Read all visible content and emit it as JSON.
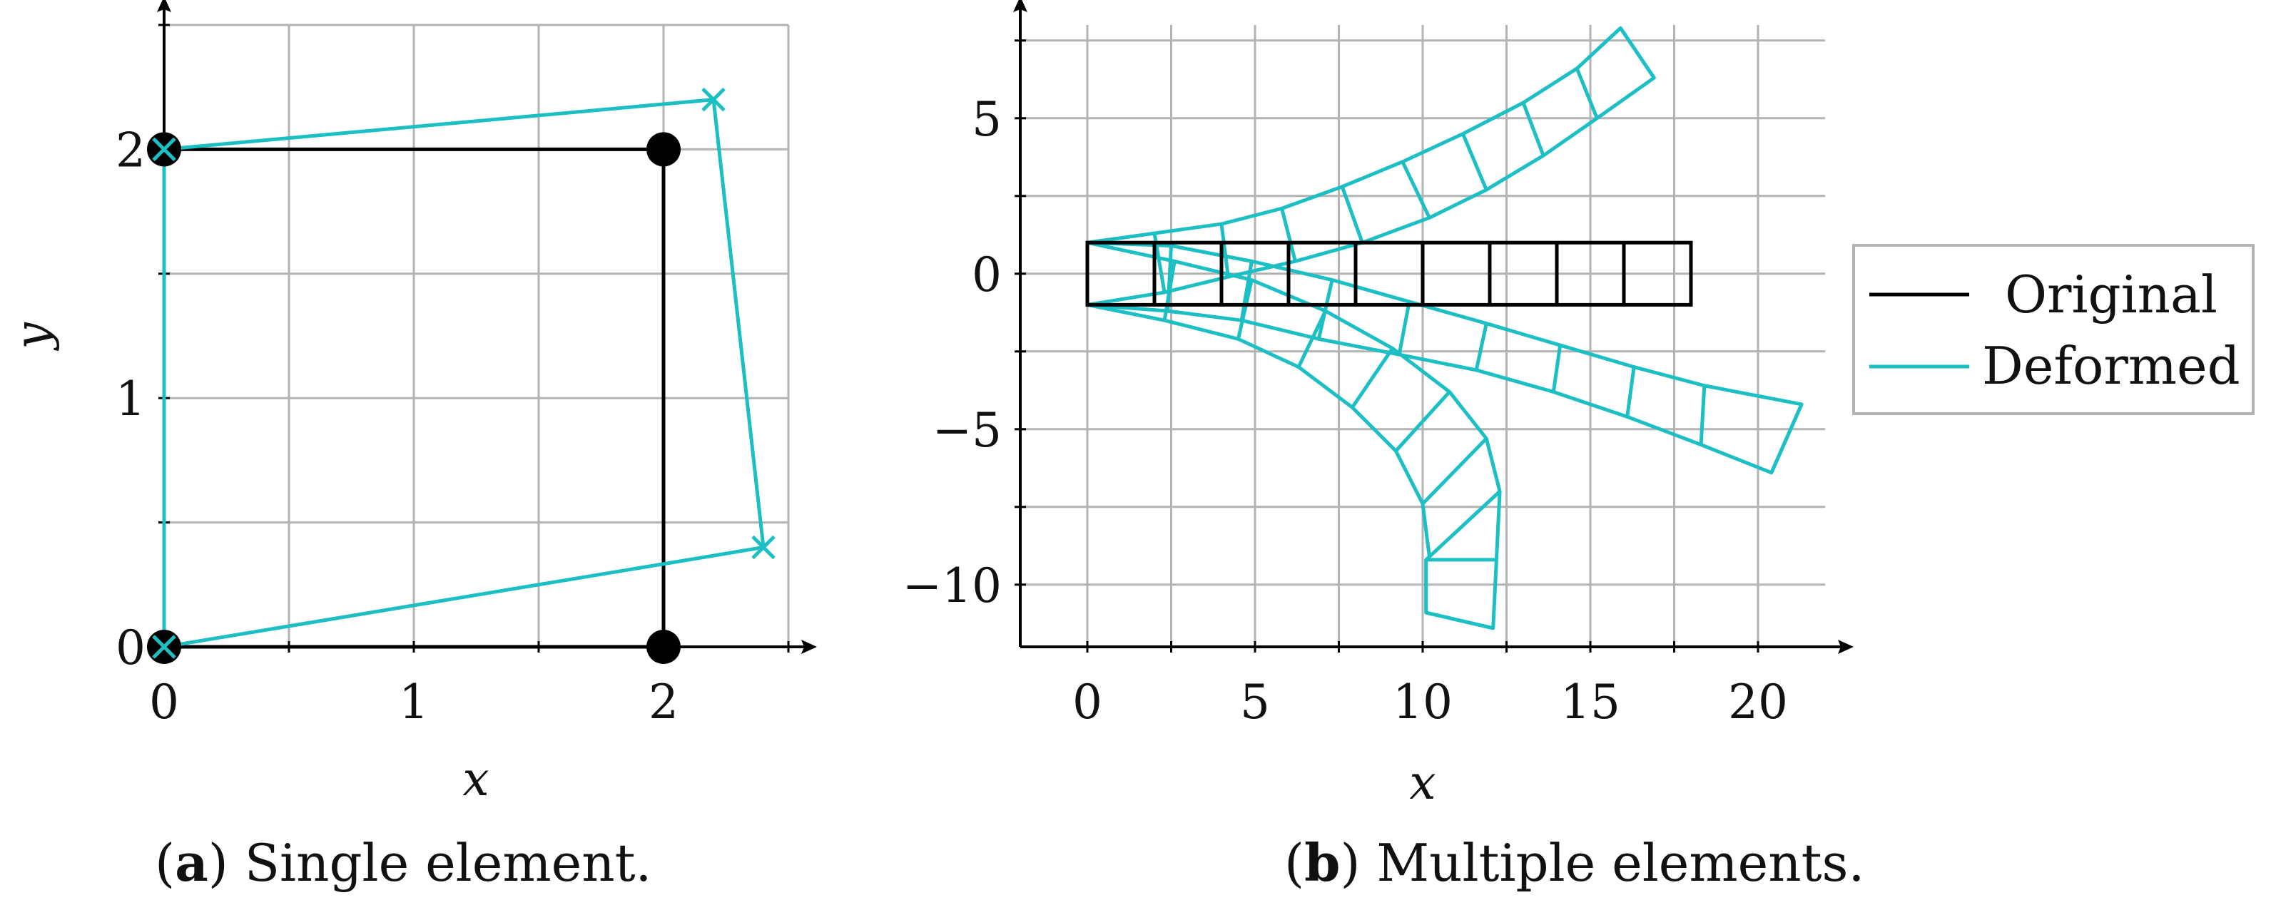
{
  "chart_data": [
    {
      "type": "line",
      "caption_tag": "a",
      "caption_text": "Single element.",
      "xlabel": "x",
      "ylabel": "y",
      "xlim": [
        0,
        2.5
      ],
      "ylim": [
        0,
        2.5
      ],
      "xticks": [
        0,
        1,
        2
      ],
      "yticks": [
        0,
        1,
        2
      ],
      "grid_step": 0.5,
      "grid": true,
      "original": [
        [
          0,
          0
        ],
        [
          2,
          0
        ],
        [
          2,
          2
        ],
        [
          0,
          2
        ]
      ],
      "deformed": [
        [
          0,
          0
        ],
        [
          2.4,
          0.4
        ],
        [
          2.2,
          2.2
        ],
        [
          0,
          2
        ]
      ]
    },
    {
      "type": "line",
      "caption_tag": "b",
      "caption_text": "Multiple elements.",
      "xlabel": "x",
      "ylabel": "",
      "xlim": [
        -2,
        22
      ],
      "ylim": [
        -12,
        8
      ],
      "xticks": [
        0,
        5,
        10,
        15,
        20
      ],
      "yticks": [
        -10,
        -5,
        0,
        5
      ],
      "grid_step_x": 2.5,
      "grid_step_y": 2.5,
      "grid": true,
      "original_mesh": {
        "x_nodes": [
          0,
          2,
          4,
          6,
          8,
          10,
          12,
          14,
          16,
          18
        ],
        "y_bottom": -1,
        "y_top": 1
      },
      "deformed_meshes": [
        {
          "top": [
            [
              0,
              1
            ],
            [
              2,
              1.3
            ],
            [
              4,
              1.6
            ],
            [
              5.8,
              2.1
            ],
            [
              7.6,
              2.8
            ],
            [
              9.4,
              3.6
            ],
            [
              11.2,
              4.5
            ],
            [
              13,
              5.5
            ],
            [
              14.6,
              6.6
            ],
            [
              15.9,
              7.9
            ]
          ],
          "bottom": [
            [
              0,
              -1
            ],
            [
              2.3,
              -0.6
            ],
            [
              4.2,
              -0.1
            ],
            [
              6.2,
              0.4
            ],
            [
              8.2,
              1
            ],
            [
              10.2,
              1.8
            ],
            [
              11.9,
              2.7
            ],
            [
              13.6,
              3.8
            ],
            [
              15.2,
              5
            ],
            [
              16.9,
              6.3
            ]
          ]
        },
        {
          "top": [
            [
              0,
              1
            ],
            [
              2.5,
              0.9
            ],
            [
              4.9,
              0.4
            ],
            [
              7.3,
              -0.2
            ],
            [
              9.6,
              -0.9
            ],
            [
              11.9,
              -1.6
            ],
            [
              14.1,
              -2.3
            ],
            [
              16.3,
              -3
            ],
            [
              18.4,
              -3.6
            ],
            [
              21.3,
              -4.2
            ]
          ],
          "bottom": [
            [
              0,
              -1
            ],
            [
              2.4,
              -1.2
            ],
            [
              4.6,
              -1.5
            ],
            [
              6.9,
              -2.1
            ],
            [
              9.3,
              -2.6
            ],
            [
              11.6,
              -3.1
            ],
            [
              13.9,
              -3.8
            ],
            [
              16.1,
              -4.6
            ],
            [
              18.3,
              -5.5
            ],
            [
              20.4,
              -6.4
            ]
          ]
        },
        {
          "top": [
            [
              0,
              1
            ],
            [
              2.6,
              0.4
            ],
            [
              4.9,
              -0.2
            ],
            [
              7.1,
              -1.2
            ],
            [
              9.1,
              -2.4
            ],
            [
              10.8,
              -3.8
            ],
            [
              11.9,
              -5.3
            ],
            [
              12.3,
              -7
            ],
            [
              12.2,
              -9.2
            ],
            [
              12.1,
              -11.4
            ]
          ],
          "bottom": [
            [
              0,
              -1
            ],
            [
              2.3,
              -1.5
            ],
            [
              4.5,
              -2.1
            ],
            [
              6.3,
              -3
            ],
            [
              7.9,
              -4.3
            ],
            [
              9.2,
              -5.7
            ],
            [
              10,
              -7.4
            ],
            [
              10.2,
              -9.1
            ],
            [
              10.1,
              -9.2
            ],
            [
              10.1,
              -10.9
            ]
          ]
        }
      ]
    }
  ],
  "legend": {
    "items": [
      {
        "label": "Original",
        "color": "#000000"
      },
      {
        "label": "Deformed",
        "color": "#1cbfc4"
      }
    ]
  },
  "colors": {
    "original": "#000000",
    "deformed": "#1cbfc4",
    "grid": "#b3b3b3"
  }
}
